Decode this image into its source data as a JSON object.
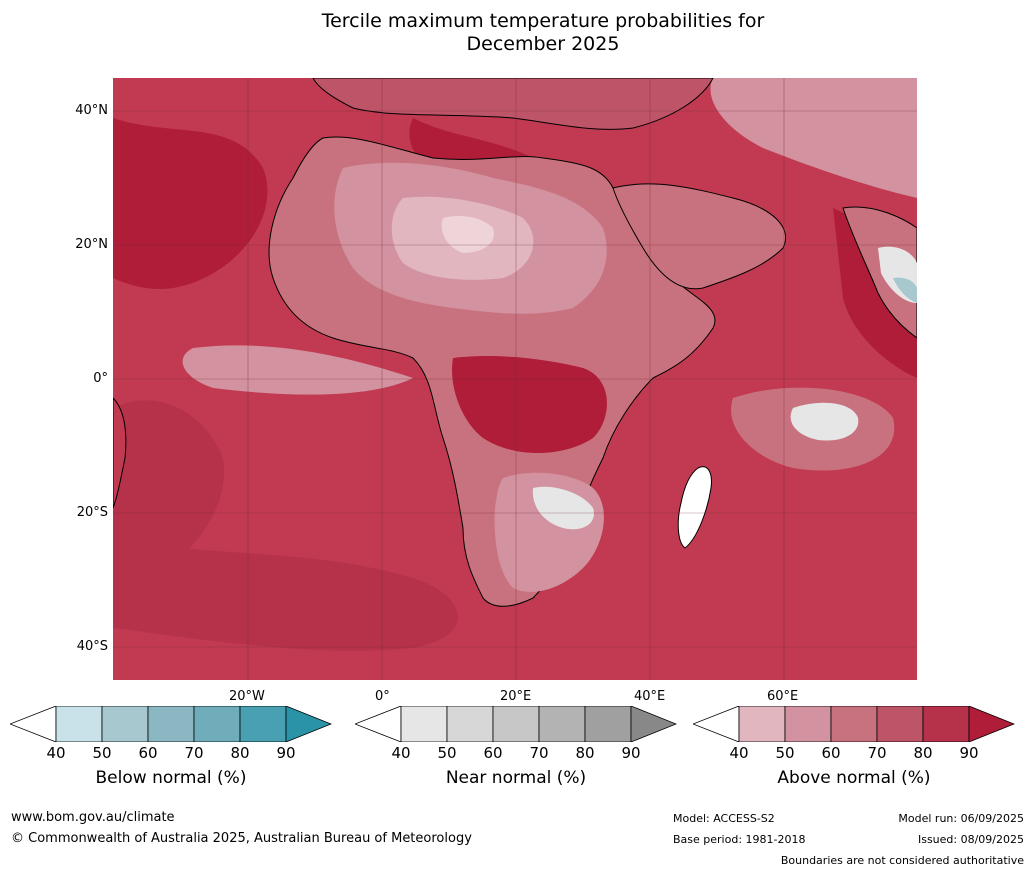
{
  "title_line1": "Tercile maximum temperature probabilities for",
  "title_line2": "December 2025",
  "lat_labels": [
    "40°N",
    "20°N",
    "0°",
    "20°S",
    "40°S"
  ],
  "lon_labels": [
    "20°W",
    "0°",
    "20°E",
    "40°E",
    "60°E"
  ],
  "colorbars": [
    {
      "title": "Below normal (%)",
      "ticks": [
        "40",
        "50",
        "60",
        "70",
        "80",
        "90"
      ],
      "colors": [
        "#ffffff",
        "#c9e1e8",
        "#a7c8cf",
        "#8ab7c2",
        "#6fadbb",
        "#48a0b2",
        "#2b93a8"
      ]
    },
    {
      "title": "Near normal (%)",
      "ticks": [
        "40",
        "50",
        "60",
        "70",
        "80",
        "90"
      ],
      "colors": [
        "#ffffff",
        "#e6e6e6",
        "#d7d7d7",
        "#c7c7c7",
        "#b3b3b3",
        "#a0a0a0",
        "#888888"
      ]
    },
    {
      "title": "Above normal (%)",
      "ticks": [
        "40",
        "50",
        "60",
        "70",
        "80",
        "90"
      ],
      "colors": [
        "#ffffff",
        "#e2b6bf",
        "#d3929f",
        "#c9727f",
        "#be5468",
        "#b6324b",
        "#b01d38"
      ]
    }
  ],
  "footer": {
    "url": "www.bom.gov.au/climate",
    "copyright": "© Commonwealth of Australia 2025, Australian Bureau of Meteorology",
    "model": "Model: ACCESS-S2",
    "base_period": "Base period: 1981-2018",
    "model_run": "Model run: 06/09/2025",
    "issued": "Issued: 08/09/2025",
    "disclaimer": "Boundaries are not considered authoritative"
  }
}
